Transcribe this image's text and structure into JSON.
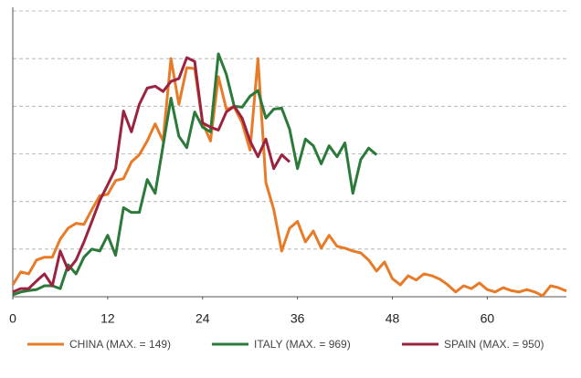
{
  "chart_data": {
    "type": "line",
    "x": [
      0,
      1,
      2,
      3,
      4,
      5,
      6,
      7,
      8,
      9,
      10,
      11,
      12,
      13,
      14,
      15,
      16,
      17,
      18,
      19,
      20,
      21,
      22,
      23,
      24,
      25,
      26,
      27,
      28,
      29,
      30,
      31,
      32,
      33,
      34,
      35,
      36,
      37,
      38,
      39,
      40,
      41,
      42,
      43,
      44,
      45,
      46,
      47,
      48,
      49,
      50,
      51,
      52,
      53,
      54,
      55,
      56,
      57,
      58,
      59,
      60,
      61,
      62,
      63,
      64,
      65,
      66,
      67,
      68,
      69,
      70
    ],
    "xlim": [
      0,
      70
    ],
    "xticks": [
      0,
      12,
      24,
      36,
      48,
      60
    ],
    "ylim": [
      0,
      6
    ],
    "yticks": [
      1,
      2,
      3,
      4,
      5,
      6
    ],
    "grid": true,
    "series": [
      {
        "name": "CHINA (MAX. = 149)",
        "color": "#e87b27",
        "values": [
          0.25,
          0.52,
          0.48,
          0.77,
          0.83,
          0.83,
          1.21,
          1.44,
          1.54,
          1.52,
          1.83,
          2.12,
          2.15,
          2.44,
          2.48,
          2.83,
          2.98,
          3.27,
          3.63,
          3.27,
          5.0,
          4.04,
          4.81,
          4.79,
          3.65,
          3.27,
          4.62,
          3.94,
          3.98,
          3.65,
          3.08,
          5.0,
          2.4,
          1.83,
          0.96,
          1.44,
          1.58,
          1.15,
          1.38,
          1.02,
          1.29,
          1.06,
          1.02,
          0.96,
          0.92,
          0.77,
          0.54,
          0.73,
          0.38,
          0.25,
          0.44,
          0.35,
          0.48,
          0.44,
          0.37,
          0.25,
          0.1,
          0.23,
          0.17,
          0.29,
          0.15,
          0.1,
          0.19,
          0.13,
          0.1,
          0.15,
          0.1,
          0.02,
          0.23,
          0.19,
          0.12
        ]
      },
      {
        "name": "ITALY (MAX. = 969)",
        "color": "#2b7a3a",
        "values": [
          0.04,
          0.1,
          0.13,
          0.15,
          0.23,
          0.23,
          0.17,
          0.67,
          0.48,
          0.83,
          1.0,
          0.96,
          1.29,
          0.87,
          1.87,
          1.77,
          1.77,
          2.46,
          2.17,
          3.17,
          4.17,
          3.37,
          3.13,
          3.88,
          3.56,
          3.46,
          5.1,
          4.67,
          4.0,
          3.98,
          4.21,
          4.33,
          3.75,
          3.94,
          3.96,
          3.52,
          2.69,
          3.31,
          3.17,
          2.79,
          3.17,
          2.94,
          3.23,
          2.17,
          2.88,
          3.12,
          2.98,
          null,
          null,
          null,
          null,
          null,
          null,
          null,
          null,
          null,
          null,
          null,
          null,
          null,
          null,
          null,
          null,
          null,
          null,
          null,
          null,
          null,
          null,
          null,
          null
        ]
      },
      {
        "name": "SPAIN (MAX. = 950)",
        "color": "#9c2340",
        "values": [
          0.1,
          0.17,
          0.17,
          0.33,
          0.48,
          0.23,
          0.96,
          0.56,
          0.77,
          1.15,
          1.58,
          2.02,
          2.35,
          2.69,
          3.9,
          3.46,
          4.04,
          4.38,
          4.42,
          4.31,
          4.52,
          4.58,
          5.02,
          4.94,
          3.65,
          3.56,
          3.5,
          3.88,
          4.0,
          3.75,
          3.27,
          2.94,
          3.31,
          2.69,
          2.98,
          2.83,
          null,
          null,
          null,
          null,
          null,
          null,
          null,
          null,
          null,
          null,
          null,
          null,
          null,
          null,
          null,
          null,
          null,
          null,
          null,
          null,
          null,
          null,
          null,
          null,
          null,
          null,
          null,
          null,
          null,
          null,
          null,
          null,
          null,
          null,
          null
        ]
      }
    ]
  }
}
